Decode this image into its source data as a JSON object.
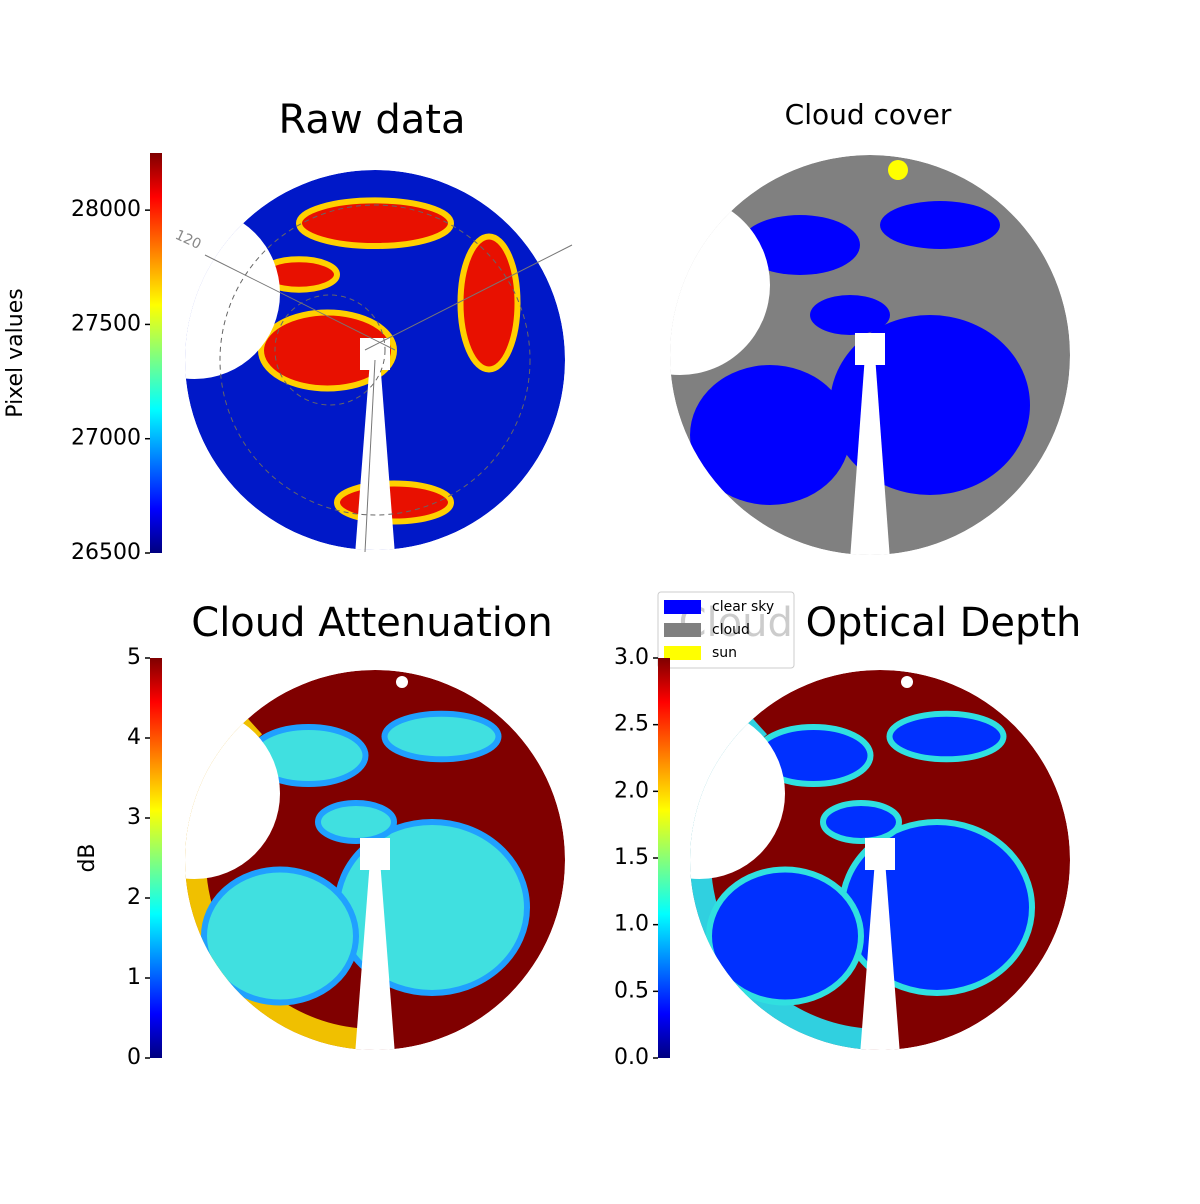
{
  "chart_data": [
    {
      "type": "image",
      "title": "Raw data",
      "colorbar_label": "Pixel values",
      "colormap": "jet",
      "clim": [
        26500,
        28250
      ],
      "cticks": [
        26500,
        27000,
        27500,
        28000
      ],
      "annotation": "120"
    },
    {
      "type": "image",
      "title": "Cloud cover",
      "legend": "lower left",
      "series": [
        {
          "name": "clear sky",
          "color": "#0000ff"
        },
        {
          "name": "cloud",
          "color": "#808080"
        },
        {
          "name": "sun",
          "color": "#ffff00"
        }
      ]
    },
    {
      "type": "image",
      "title": "Cloud Attenuation",
      "colorbar_label": "dB",
      "colormap": "jet",
      "clim": [
        0,
        5
      ],
      "cticks": [
        0,
        1,
        2,
        3,
        4,
        5
      ]
    },
    {
      "type": "image",
      "title": "Cloud Optical Depth",
      "colormap": "jet",
      "clim": [
        0,
        3
      ],
      "cticks": [
        {
          "value": 0,
          "label": "0.0"
        },
        0.5,
        {
          "value": 1,
          "label": "1.0"
        },
        1.5,
        {
          "value": 2,
          "label": "2.0"
        },
        2.5,
        {
          "value": 3,
          "label": "3.0"
        }
      ]
    }
  ]
}
